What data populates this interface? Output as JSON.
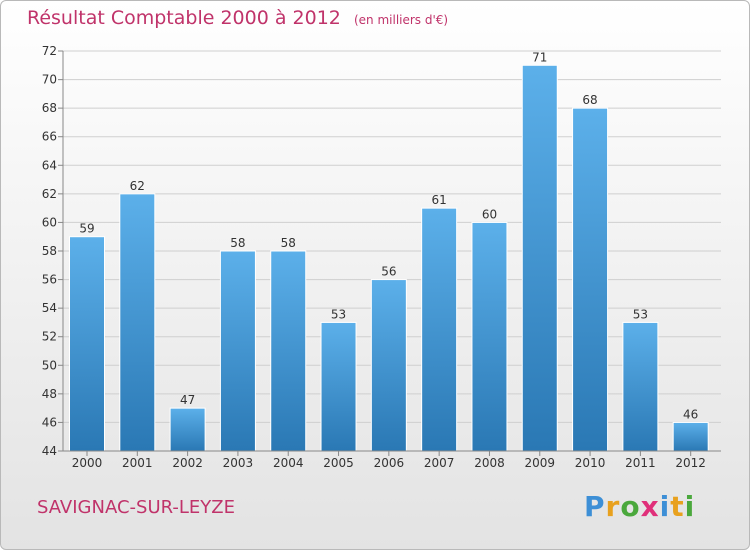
{
  "colors": {
    "title": "#c0336a",
    "bar_light": "#5cb0ea",
    "bar_dark": "#2a78b4",
    "grid": "#cfcfcf",
    "text": "#333333"
  },
  "chart_data": {
    "type": "bar",
    "title": "Résultat Comptable 2000 à 2012",
    "unit_label": "(en milliers d'€)",
    "xlabel": "",
    "ylabel": "",
    "categories": [
      "2000",
      "2001",
      "2002",
      "2003",
      "2004",
      "2005",
      "2006",
      "2007",
      "2008",
      "2009",
      "2010",
      "2011",
      "2012"
    ],
    "values": [
      59,
      62,
      47,
      58,
      58,
      53,
      56,
      61,
      60,
      71,
      68,
      53,
      46
    ],
    "ylim": [
      44,
      72
    ],
    "yticks": [
      44,
      46,
      48,
      50,
      52,
      54,
      56,
      58,
      60,
      62,
      64,
      66,
      68,
      70,
      72
    ],
    "grid": true
  },
  "footer": {
    "commune": "SAVIGNAC-SUR-LEYZE",
    "logo_letters": [
      {
        "char": "P",
        "color": "#3d8fd6"
      },
      {
        "char": "r",
        "color": "#e8a11e"
      },
      {
        "char": "o",
        "color": "#4aa83c"
      },
      {
        "char": "x",
        "color": "#e0307a"
      },
      {
        "char": "i",
        "color": "#3d8fd6"
      },
      {
        "char": "t",
        "color": "#e8a11e"
      },
      {
        "char": "i",
        "color": "#4aa83c"
      }
    ]
  }
}
